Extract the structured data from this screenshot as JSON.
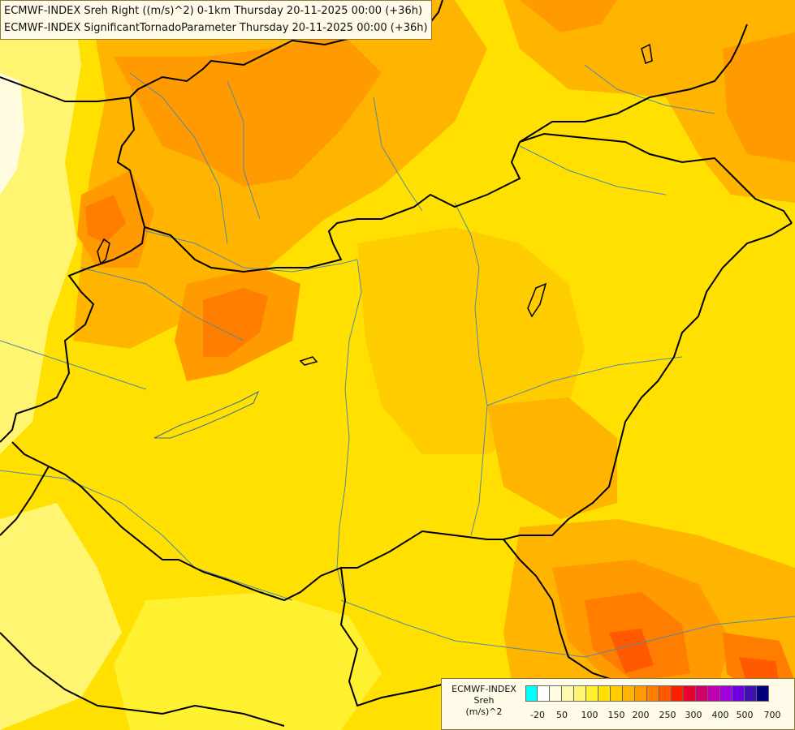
{
  "title_lines": [
    "ECMWF-INDEX Sreh Right ((m/s)^2) 0-1km Thursday 20-11-2025 00:00 (+36h)",
    "ECMWF-INDEX SignificantTornadoParameter Thursday 20-11-2025 00:00 (+36h)"
  ],
  "legend": {
    "source": "ECMWF-INDEX",
    "name": "Sreh",
    "unit": "(m/s)^2",
    "colors": [
      "#00ffff",
      "#ffffff",
      "#fffce0",
      "#fff9b0",
      "#fff570",
      "#fff030",
      "#ffe000",
      "#ffcc00",
      "#ffb400",
      "#ff9a00",
      "#ff7e00",
      "#ff5a00",
      "#ff2000",
      "#e80030",
      "#d0006a",
      "#c000b0",
      "#a000e0",
      "#7000e0",
      "#4010b0",
      "#00007a"
    ],
    "tick_labels": [
      "-20",
      "50",
      "100",
      "150",
      "200",
      "250",
      "300",
      "400",
      "500",
      "700"
    ]
  }
}
